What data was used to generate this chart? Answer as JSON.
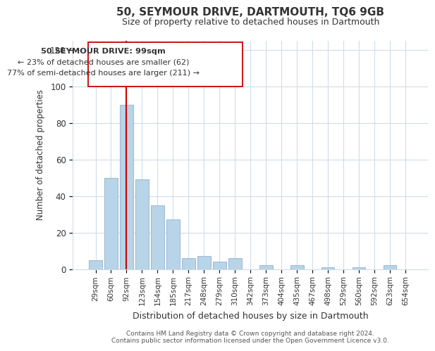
{
  "title": "50, SEYMOUR DRIVE, DARTMOUTH, TQ6 9GB",
  "subtitle": "Size of property relative to detached houses in Dartmouth",
  "xlabel": "Distribution of detached houses by size in Dartmouth",
  "ylabel": "Number of detached properties",
  "bar_labels": [
    "29sqm",
    "60sqm",
    "92sqm",
    "123sqm",
    "154sqm",
    "185sqm",
    "217sqm",
    "248sqm",
    "279sqm",
    "310sqm",
    "342sqm",
    "373sqm",
    "404sqm",
    "435sqm",
    "467sqm",
    "498sqm",
    "529sqm",
    "560sqm",
    "592sqm",
    "623sqm",
    "654sqm"
  ],
  "bar_values": [
    5,
    50,
    90,
    49,
    35,
    27,
    6,
    7,
    4,
    6,
    0,
    2,
    0,
    2,
    0,
    1,
    0,
    1,
    0,
    2,
    0
  ],
  "bar_color": "#b8d4e8",
  "bar_edge_color": "#a0bcd4",
  "ylim": [
    0,
    125
  ],
  "yticks": [
    0,
    20,
    40,
    60,
    80,
    100,
    120
  ],
  "vline_x": 2,
  "vline_color": "#cc0000",
  "annotation_line1": "50 SEYMOUR DRIVE: 99sqm",
  "annotation_line2": "← 23% of detached houses are smaller (62)",
  "annotation_line3": "77% of semi-detached houses are larger (211) →",
  "footer_line1": "Contains HM Land Registry data © Crown copyright and database right 2024.",
  "footer_line2": "Contains public sector information licensed under the Open Government Licence v3.0.",
  "background_color": "#ffffff",
  "grid_color": "#d0dce8"
}
